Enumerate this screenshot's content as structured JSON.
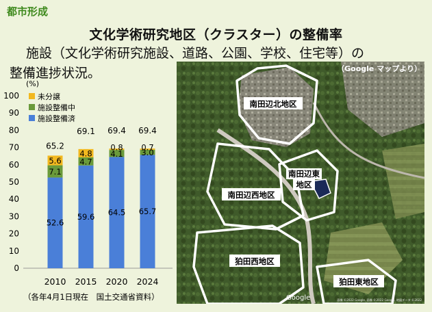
{
  "header": {
    "category": "都市形成"
  },
  "title": "文化学術研究地区（クラスター）の整備率",
  "description": {
    "line1": "施設（文化学術研究施設、道路、公園、学校、住宅等）の",
    "line2": "整備進捗状況。"
  },
  "chart_data": {
    "type": "bar",
    "stacked": true,
    "categories": [
      "2010",
      "2015",
      "2020",
      "2024"
    ],
    "series": [
      {
        "name": "施設整備済",
        "values": [
          52.6,
          59.6,
          64.5,
          65.7
        ],
        "color": "#4a7fd8"
      },
      {
        "name": "施設整備中",
        "values": [
          7.1,
          4.7,
          4.1,
          3.0
        ],
        "color": "#6a9a3b"
      },
      {
        "name": "未分譲",
        "values": [
          5.6,
          4.8,
          0.8,
          0.7
        ],
        "color": "#f2b81f"
      }
    ],
    "totals": [
      65.2,
      69.1,
      69.4,
      69.4
    ],
    "ylabel": "(%)",
    "ylim": [
      0,
      100
    ],
    "yticks": [
      0,
      10,
      20,
      30,
      40,
      50,
      60,
      70,
      80,
      90,
      100
    ],
    "legend_position": "top-left",
    "grid": false,
    "note": "（各年4月1日現在　国土交通省資料）"
  },
  "map": {
    "source": "（Google マップより）",
    "areas": [
      "南田辺北地区",
      "南田辺東地区",
      "南田辺西地区",
      "狛田西地区",
      "狛田東地区"
    ],
    "watermark": "Google",
    "credit": "画像 ©2022 Google, 画像 ©2022 Google, 地図データ ©2022"
  }
}
